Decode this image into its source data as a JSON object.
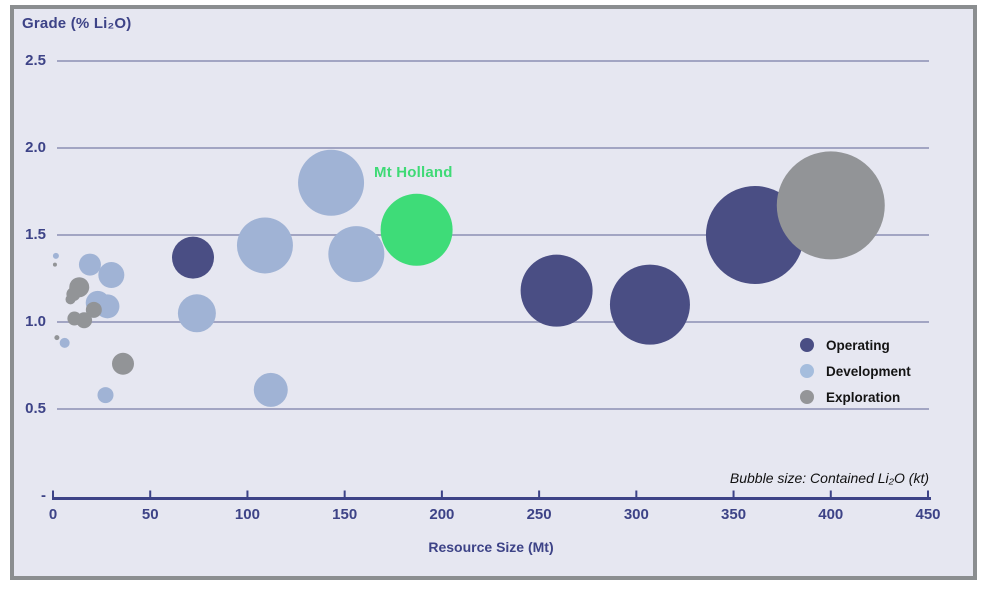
{
  "frame": {
    "background": "#e6e7f1",
    "border_color": "#8b8e90"
  },
  "colors": {
    "axis": "#3d4387",
    "gridline": "#a2a5c3",
    "note_text": "#111111",
    "legend_text": "#141414"
  },
  "chart_data": {
    "type": "scatter",
    "subtype": "bubble",
    "title": "Grade (% Li₂O)",
    "xlabel": "Resource Size (Mt)",
    "ylabel": "Grade (% Li₂O)",
    "size_note": "Bubble size: Contained Li₂O (kt)",
    "size_encoding": "bubble radius in screen px (kt values not labeled in figure)",
    "grid": true,
    "xlim": [
      0,
      450
    ],
    "ylim": [
      0,
      2.5
    ],
    "x_ticks": [
      0,
      50,
      100,
      150,
      200,
      250,
      300,
      350,
      400,
      450
    ],
    "y_ticks": [
      {
        "value": 2.5,
        "label": "2.5"
      },
      {
        "value": 2.0,
        "label": "2.0"
      },
      {
        "value": 1.5,
        "label": "1.5"
      },
      {
        "value": 1.0,
        "label": "1.0"
      },
      {
        "value": 0.5,
        "label": "0.5"
      },
      {
        "value": 0,
        "label": "-"
      }
    ],
    "legend_position": "inside-right",
    "legend": [
      {
        "label": "Operating",
        "color": "#4a4e84"
      },
      {
        "label": "Development",
        "color": "#a5bddd"
      },
      {
        "label": "Exploration",
        "color": "#949598"
      }
    ],
    "annotation": {
      "text": "Mt Holland",
      "color": "#3fda76",
      "mt": 187,
      "grade": 1.53
    },
    "series": [
      {
        "name": "Development",
        "color": "#a0b3d5",
        "points": [
          {
            "mt": 1.5,
            "grade": 1.38,
            "r": 3
          },
          {
            "mt": 19,
            "grade": 1.33,
            "r": 11
          },
          {
            "mt": 30,
            "grade": 1.27,
            "r": 13
          },
          {
            "mt": 23,
            "grade": 1.11,
            "r": 12
          },
          {
            "mt": 28,
            "grade": 1.09,
            "r": 12
          },
          {
            "mt": 6,
            "grade": 0.88,
            "r": 5
          },
          {
            "mt": 27,
            "grade": 0.58,
            "r": 8
          },
          {
            "mt": 112,
            "grade": 0.61,
            "r": 17
          },
          {
            "mt": 74,
            "grade": 1.05,
            "r": 19
          },
          {
            "mt": 109,
            "grade": 1.44,
            "r": 28
          },
          {
            "mt": 143,
            "grade": 1.8,
            "r": 33
          },
          {
            "mt": 156,
            "grade": 1.39,
            "r": 28
          }
        ]
      },
      {
        "name": "Operating",
        "color": "#4a4e84",
        "points": [
          {
            "mt": 72,
            "grade": 1.37,
            "r": 21
          },
          {
            "mt": 259,
            "grade": 1.18,
            "r": 36
          },
          {
            "mt": 307,
            "grade": 1.1,
            "r": 40
          },
          {
            "mt": 361,
            "grade": 1.5,
            "r": 49
          }
        ]
      },
      {
        "name": "Exploration",
        "color": "#929497",
        "points": [
          {
            "mt": 1,
            "grade": 1.33,
            "r": 2
          },
          {
            "mt": 13.5,
            "grade": 1.2,
            "r": 10
          },
          {
            "mt": 10.5,
            "grade": 1.16,
            "r": 7
          },
          {
            "mt": 9,
            "grade": 1.13,
            "r": 5
          },
          {
            "mt": 21,
            "grade": 1.07,
            "r": 8
          },
          {
            "mt": 11,
            "grade": 1.02,
            "r": 7
          },
          {
            "mt": 16,
            "grade": 1.01,
            "r": 8
          },
          {
            "mt": 2,
            "grade": 0.91,
            "r": 2.5
          },
          {
            "mt": 36,
            "grade": 0.76,
            "r": 11
          },
          {
            "mt": 400,
            "grade": 1.67,
            "r": 54
          }
        ]
      },
      {
        "name": "Mt Holland",
        "color": "#3edc78",
        "points": [
          {
            "mt": 187,
            "grade": 1.53,
            "r": 36
          }
        ]
      }
    ]
  }
}
